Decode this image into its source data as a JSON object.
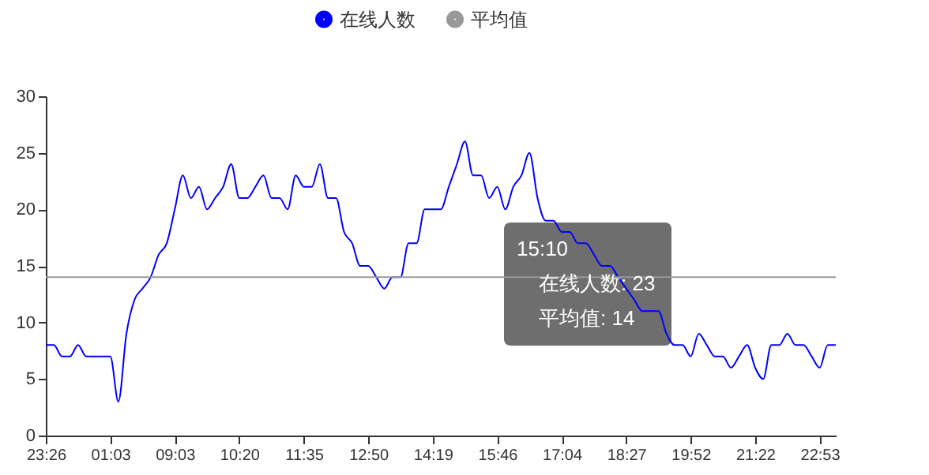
{
  "chart_data": {
    "type": "line",
    "categories": [
      "23:26",
      null,
      null,
      null,
      null,
      null,
      null,
      null,
      "01:03",
      null,
      null,
      null,
      null,
      null,
      null,
      null,
      "09:03",
      null,
      null,
      null,
      null,
      null,
      null,
      null,
      "10:20",
      null,
      null,
      null,
      null,
      null,
      null,
      null,
      "11:35",
      null,
      null,
      null,
      null,
      null,
      null,
      null,
      "12:50",
      null,
      null,
      null,
      null,
      null,
      null,
      null,
      "14:19",
      null,
      null,
      null,
      null,
      null,
      null,
      null,
      "15:46",
      null,
      null,
      null,
      null,
      null,
      null,
      null,
      "17:04",
      null,
      null,
      null,
      null,
      null,
      null,
      null,
      "18:27",
      null,
      null,
      null,
      null,
      null,
      null,
      null,
      "19:52",
      null,
      null,
      null,
      null,
      null,
      null,
      null,
      "21:22",
      null,
      null,
      null,
      null,
      null,
      null,
      null,
      "22:53",
      null,
      null
    ],
    "series": [
      {
        "name": "在线人数",
        "color": "#0000ff",
        "values": [
          8,
          8,
          7,
          7,
          8,
          7,
          7,
          7,
          7,
          3,
          9,
          12,
          13,
          14,
          16,
          17,
          20,
          23,
          21,
          22,
          20,
          21,
          22,
          24,
          21,
          21,
          22,
          23,
          21,
          21,
          20,
          23,
          22,
          22,
          24,
          21,
          21,
          18,
          17,
          15,
          15,
          14,
          13,
          14,
          14,
          17,
          17,
          20,
          20,
          20,
          22,
          24,
          26,
          23,
          23,
          21,
          22,
          20,
          22,
          23,
          25,
          21,
          19,
          19,
          18,
          18,
          17,
          17,
          16,
          15,
          15,
          14,
          13,
          12,
          11,
          11,
          11,
          9,
          8,
          8,
          7,
          9,
          8,
          7,
          7,
          6,
          7,
          8,
          6,
          5,
          8,
          8,
          9,
          8,
          8,
          7,
          6,
          8,
          8
        ]
      },
      {
        "name": "平均值",
        "color": "#999999",
        "values": [
          14,
          14,
          14,
          14,
          14,
          14,
          14,
          14,
          14,
          14,
          14,
          14,
          14,
          14,
          14,
          14,
          14,
          14,
          14,
          14,
          14,
          14,
          14,
          14,
          14,
          14,
          14,
          14,
          14,
          14,
          14,
          14,
          14,
          14,
          14,
          14,
          14,
          14,
          14,
          14,
          14,
          14,
          14,
          14,
          14,
          14,
          14,
          14,
          14,
          14,
          14,
          14,
          14,
          14,
          14,
          14,
          14,
          14,
          14,
          14,
          14,
          14,
          14,
          14,
          14,
          14,
          14,
          14,
          14,
          14,
          14,
          14,
          14,
          14,
          14,
          14,
          14,
          14,
          14,
          14,
          14,
          14,
          14,
          14,
          14,
          14,
          14,
          14,
          14,
          14,
          14,
          14,
          14,
          14,
          14,
          14,
          14,
          14,
          14
        ]
      }
    ],
    "ylim": [
      0,
      30
    ],
    "yticks": [
      0,
      5,
      10,
      15,
      20,
      25,
      30
    ],
    "grid": false,
    "legend": "top",
    "annotations": [
      "15:10",
      "在线人数: 23",
      "平均值: 14"
    ]
  }
}
